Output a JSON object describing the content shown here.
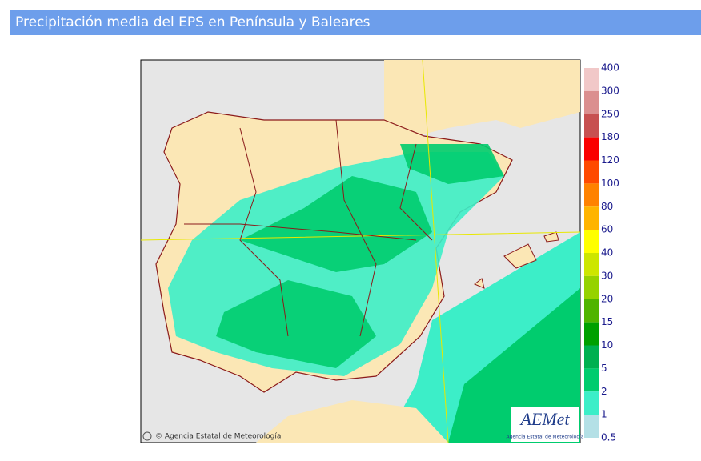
{
  "header": {
    "title": "Precipitación media del EPS en Península y Baleares"
  },
  "map": {
    "credit": "© Agencia Estatal de Meteorología",
    "logo": {
      "name": "AEMet",
      "caption": "Agencia Estatal de Meteorología"
    }
  },
  "colorbar": {
    "levels": [
      400,
      300,
      250,
      180,
      120,
      100,
      80,
      60,
      40,
      30,
      20,
      15,
      10,
      5,
      2,
      1,
      0.5
    ],
    "colors": [
      "#f1c8c8",
      "#db8f8f",
      "#c75050",
      "#fa0000",
      "#ff4a00",
      "#ff8200",
      "#ffb400",
      "#ffff00",
      "#cde600",
      "#96d200",
      "#50b400",
      "#00a000",
      "#00b050",
      "#00cc6e",
      "#3ceec8",
      "#b4e0e6"
    ]
  }
}
